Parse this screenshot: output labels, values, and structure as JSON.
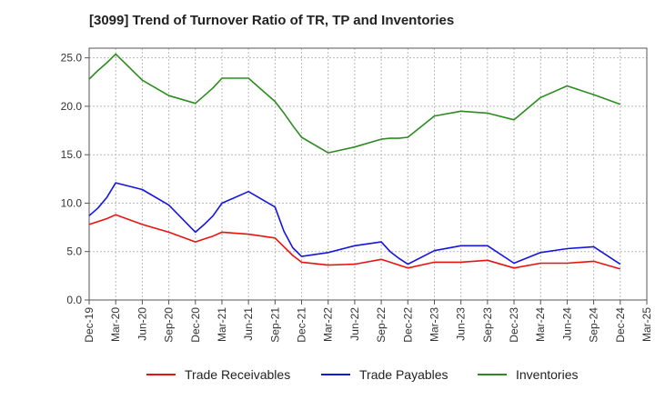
{
  "chart_data": {
    "type": "line",
    "title": "[3099]  Trend of Turnover Ratio of TR, TP and Inventories",
    "xlabel": "",
    "ylabel": "",
    "ylim": [
      0,
      26
    ],
    "yticks": [
      "0.0",
      "5.0",
      "10.0",
      "15.0",
      "20.0",
      "25.0"
    ],
    "x_tick_labels": [
      "Dec-19",
      "Mar-20",
      "Jun-20",
      "Sep-20",
      "Dec-20",
      "Mar-21",
      "Jun-21",
      "Sep-21",
      "Dec-21",
      "Mar-22",
      "Jun-22",
      "Sep-22",
      "Dec-22",
      "Mar-23",
      "Jun-23",
      "Sep-23",
      "Dec-23",
      "Mar-24",
      "Jun-24",
      "Sep-24",
      "Dec-24",
      "Mar-25"
    ],
    "x": [
      "Dec-19",
      "Jan-20",
      "Feb-20",
      "Mar-20",
      "Jun-20",
      "Sep-20",
      "Dec-20",
      "Jan-21",
      "Feb-21",
      "Mar-21",
      "Jun-21",
      "Sep-21",
      "Oct-21",
      "Nov-21",
      "Dec-21",
      "Mar-22",
      "Jun-22",
      "Sep-22",
      "Oct-22",
      "Nov-22",
      "Dec-22",
      "Mar-23",
      "Jun-23",
      "Sep-23",
      "Dec-23",
      "Mar-24",
      "Jun-24",
      "Sep-24",
      "Dec-24"
    ],
    "grid": true,
    "legend_position": "bottom",
    "series": [
      {
        "name": "Trade Receivables",
        "color": "#e8130f",
        "values": [
          7.8,
          8.1,
          8.4,
          8.8,
          7.8,
          7.0,
          6.0,
          6.3,
          6.6,
          7.0,
          6.8,
          6.4,
          5.5,
          4.6,
          3.9,
          3.6,
          3.7,
          4.2,
          3.9,
          3.6,
          3.3,
          3.9,
          3.9,
          4.1,
          3.3,
          3.8,
          3.8,
          4.0,
          3.2
        ]
      },
      {
        "name": "Trade Payables",
        "color": "#1515e0",
        "values": [
          8.7,
          9.5,
          10.6,
          12.1,
          11.4,
          9.8,
          7.0,
          7.8,
          8.7,
          10.0,
          11.2,
          9.6,
          7.1,
          5.4,
          4.5,
          4.9,
          5.6,
          6.0,
          5.0,
          4.3,
          3.7,
          5.1,
          5.6,
          5.6,
          3.8,
          4.9,
          5.3,
          5.5,
          3.7
        ]
      },
      {
        "name": "Inventories",
        "color": "#2e8b22",
        "values": [
          22.8,
          23.7,
          24.5,
          25.4,
          22.7,
          21.1,
          20.3,
          21.1,
          21.9,
          22.9,
          22.9,
          20.5,
          19.3,
          18.0,
          16.8,
          15.2,
          15.8,
          16.6,
          16.7,
          16.7,
          16.8,
          19.0,
          19.5,
          19.3,
          18.6,
          20.9,
          22.1,
          21.2,
          20.2
        ]
      }
    ]
  }
}
